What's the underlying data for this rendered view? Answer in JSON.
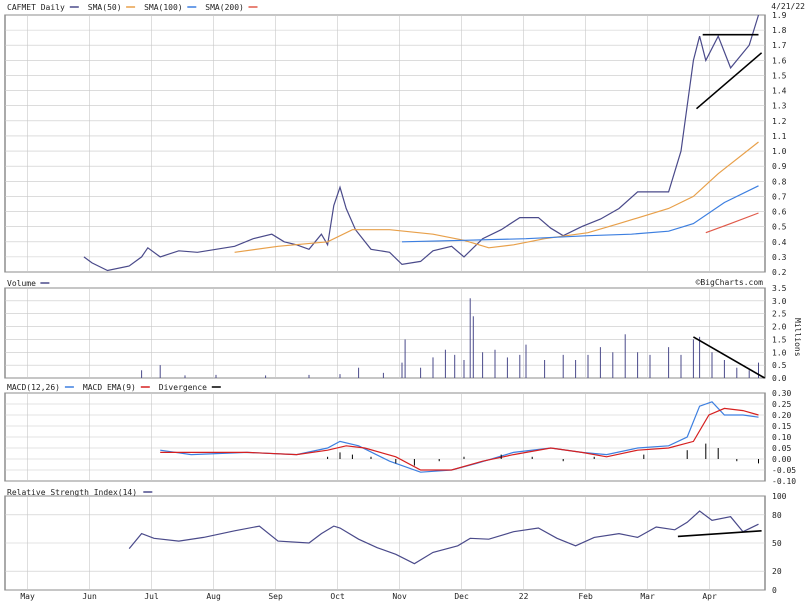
{
  "header": {
    "date": "4/21/22",
    "watermark": "©BigCharts.com"
  },
  "legends": {
    "price": [
      {
        "label": "CAFMET Daily",
        "color": "#4a4a8a"
      },
      {
        "label": "SMA(50)",
        "color": "#e8a04a"
      },
      {
        "label": "SMA(100)",
        "color": "#3d7fe0"
      },
      {
        "label": "SMA(200)",
        "color": "#e05a4a"
      }
    ],
    "volume": [
      {
        "label": "Volume",
        "color": "#4a4a8a"
      }
    ],
    "macd": [
      {
        "label": "MACD(12,26)",
        "color": "#3d7fe0"
      },
      {
        "label": "MACD EMA(9)",
        "color": "#d62020"
      },
      {
        "label": "Divergence",
        "color": "#000000"
      }
    ],
    "rsi": [
      {
        "label": "Relative Strength Index(14)",
        "color": "#4a4a8a"
      }
    ]
  },
  "colors": {
    "price": "#4a4a8a",
    "sma50": "#e8a04a",
    "sma100": "#3d7fe0",
    "sma200": "#e05a4a",
    "macd": "#3d7fe0",
    "signal": "#d62020",
    "divergence": "#000000",
    "volume": "#4a4a8a",
    "rsi": "#4a4a8a"
  },
  "chart_data": [
    {
      "type": "line",
      "panel": "price",
      "xlabels": [
        "May",
        "Jun",
        "Jul",
        "Aug",
        "Sep",
        "Oct",
        "Nov",
        "Dec",
        "22",
        "Feb",
        "Mar",
        "Apr"
      ],
      "yticks": [
        "0.2",
        "0.3",
        "0.4",
        "0.5",
        "0.6",
        "0.7",
        "0.8",
        "0.9",
        "1.0",
        "1.1",
        "1.2",
        "1.3",
        "1.4",
        "1.5",
        "1.6",
        "1.7",
        "1.8",
        "1.9"
      ],
      "ylim": [
        0.2,
        1.9
      ],
      "grid": true,
      "series": [
        {
          "name": "CAFMET Daily",
          "points": [
            [
              0.87,
              0.3
            ],
            [
              1.0,
              0.26
            ],
            [
              1.25,
              0.21
            ],
            [
              1.6,
              0.24
            ],
            [
              1.8,
              0.3
            ],
            [
              1.9,
              0.36
            ],
            [
              2.1,
              0.3
            ],
            [
              2.4,
              0.34
            ],
            [
              2.7,
              0.33
            ],
            [
              3.0,
              0.35
            ],
            [
              3.3,
              0.37
            ],
            [
              3.6,
              0.42
            ],
            [
              3.9,
              0.45
            ],
            [
              4.1,
              0.4
            ],
            [
              4.3,
              0.38
            ],
            [
              4.5,
              0.35
            ],
            [
              4.7,
              0.45
            ],
            [
              4.8,
              0.38
            ],
            [
              4.9,
              0.64
            ],
            [
              5.0,
              0.76
            ],
            [
              5.1,
              0.62
            ],
            [
              5.25,
              0.48
            ],
            [
              5.5,
              0.35
            ],
            [
              5.8,
              0.33
            ],
            [
              6.0,
              0.25
            ],
            [
              6.3,
              0.27
            ],
            [
              6.5,
              0.34
            ],
            [
              6.8,
              0.37
            ],
            [
              7.0,
              0.3
            ],
            [
              7.3,
              0.42
            ],
            [
              7.6,
              0.48
            ],
            [
              7.9,
              0.56
            ],
            [
              8.2,
              0.56
            ],
            [
              8.4,
              0.49
            ],
            [
              8.6,
              0.44
            ],
            [
              8.9,
              0.5
            ],
            [
              9.2,
              0.55
            ],
            [
              9.5,
              0.62
            ],
            [
              9.8,
              0.73
            ],
            [
              10.0,
              0.73
            ],
            [
              10.3,
              0.73
            ],
            [
              10.5,
              1.0
            ],
            [
              10.6,
              1.3
            ],
            [
              10.7,
              1.6
            ],
            [
              10.8,
              1.76
            ],
            [
              10.9,
              1.6
            ],
            [
              11.1,
              1.76
            ],
            [
              11.3,
              1.55
            ],
            [
              11.6,
              1.7
            ],
            [
              11.75,
              1.9
            ]
          ]
        },
        {
          "name": "SMA(50)",
          "points": [
            [
              3.3,
              0.33
            ],
            [
              4.0,
              0.37
            ],
            [
              4.8,
              0.4
            ],
            [
              5.2,
              0.48
            ],
            [
              5.8,
              0.48
            ],
            [
              6.5,
              0.45
            ],
            [
              7.0,
              0.41
            ],
            [
              7.4,
              0.36
            ],
            [
              7.8,
              0.38
            ],
            [
              8.3,
              0.42
            ],
            [
              9.0,
              0.46
            ],
            [
              9.5,
              0.52
            ],
            [
              10.3,
              0.62
            ],
            [
              10.7,
              0.7
            ],
            [
              11.1,
              0.85
            ],
            [
              11.75,
              1.06
            ]
          ]
        },
        {
          "name": "SMA(100)",
          "points": [
            [
              6.0,
              0.4
            ],
            [
              7.0,
              0.41
            ],
            [
              8.0,
              0.42
            ],
            [
              9.0,
              0.44
            ],
            [
              9.7,
              0.45
            ],
            [
              10.3,
              0.47
            ],
            [
              10.7,
              0.52
            ],
            [
              11.2,
              0.66
            ],
            [
              11.75,
              0.77
            ]
          ]
        },
        {
          "name": "SMA(200)",
          "points": [
            [
              10.9,
              0.46
            ],
            [
              11.3,
              0.52
            ],
            [
              11.75,
              0.59
            ]
          ]
        }
      ],
      "annotations": [
        {
          "kind": "trendline",
          "points": [
            [
              10.85,
              1.77
            ],
            [
              11.75,
              1.77
            ]
          ]
        },
        {
          "kind": "trendline",
          "points": [
            [
              10.75,
              1.28
            ],
            [
              11.8,
              1.65
            ]
          ]
        }
      ]
    },
    {
      "type": "bar",
      "panel": "volume",
      "unit": "Millions",
      "yticks": [
        "0.0",
        "0.5",
        "1.0",
        "1.5",
        "2.0",
        "2.5",
        "3.0",
        "3.5"
      ],
      "ylim": [
        0,
        3.5
      ],
      "grid": true,
      "bars": [
        [
          1.8,
          0.3
        ],
        [
          2.1,
          0.5
        ],
        [
          2.5,
          0.1
        ],
        [
          3.0,
          0.12
        ],
        [
          3.8,
          0.1
        ],
        [
          4.5,
          0.12
        ],
        [
          5.0,
          0.15
        ],
        [
          5.3,
          0.4
        ],
        [
          5.7,
          0.2
        ],
        [
          6.0,
          0.6
        ],
        [
          6.05,
          1.5
        ],
        [
          6.3,
          0.4
        ],
        [
          6.5,
          0.8
        ],
        [
          6.7,
          1.1
        ],
        [
          6.85,
          0.9
        ],
        [
          7.0,
          0.7
        ],
        [
          7.1,
          3.1
        ],
        [
          7.15,
          2.4
        ],
        [
          7.3,
          1.0
        ],
        [
          7.5,
          1.1
        ],
        [
          7.7,
          0.8
        ],
        [
          7.9,
          0.9
        ],
        [
          8.0,
          1.3
        ],
        [
          8.3,
          0.7
        ],
        [
          8.6,
          0.9
        ],
        [
          8.8,
          0.7
        ],
        [
          9.0,
          0.9
        ],
        [
          9.2,
          1.2
        ],
        [
          9.4,
          1.0
        ],
        [
          9.6,
          1.7
        ],
        [
          9.8,
          1.0
        ],
        [
          10.0,
          0.9
        ],
        [
          10.3,
          1.2
        ],
        [
          10.5,
          0.9
        ],
        [
          10.7,
          1.5
        ],
        [
          10.8,
          1.6
        ],
        [
          11.0,
          1.0
        ],
        [
          11.2,
          0.7
        ],
        [
          11.4,
          0.4
        ],
        [
          11.6,
          0.3
        ],
        [
          11.75,
          0.6
        ]
      ],
      "annotations": [
        {
          "kind": "trendline",
          "points": [
            [
              10.7,
              1.6
            ],
            [
              11.85,
              0
            ]
          ]
        }
      ]
    },
    {
      "type": "line",
      "panel": "macd",
      "yticks": [
        "-0.10",
        "-0.05",
        "0.00",
        "0.05",
        "0.10",
        "0.15",
        "0.20",
        "0.25",
        "0.30"
      ],
      "ylim": [
        -0.1,
        0.3
      ],
      "grid": true,
      "series": [
        {
          "name": "MACD(12,26)",
          "points": [
            [
              2.1,
              0.04
            ],
            [
              2.6,
              0.02
            ],
            [
              3.5,
              0.03
            ],
            [
              4.3,
              0.02
            ],
            [
              4.8,
              0.05
            ],
            [
              5.0,
              0.08
            ],
            [
              5.3,
              0.06
            ],
            [
              5.8,
              -0.01
            ],
            [
              6.3,
              -0.06
            ],
            [
              6.8,
              -0.05
            ],
            [
              7.2,
              -0.02
            ],
            [
              7.8,
              0.03
            ],
            [
              8.4,
              0.05
            ],
            [
              8.9,
              0.03
            ],
            [
              9.3,
              0.02
            ],
            [
              9.8,
              0.05
            ],
            [
              10.3,
              0.06
            ],
            [
              10.6,
              0.1
            ],
            [
              10.8,
              0.24
            ],
            [
              11.0,
              0.26
            ],
            [
              11.2,
              0.2
            ],
            [
              11.5,
              0.2
            ],
            [
              11.75,
              0.19
            ]
          ]
        },
        {
          "name": "MACD EMA(9)",
          "points": [
            [
              2.1,
              0.03
            ],
            [
              2.8,
              0.03
            ],
            [
              3.5,
              0.03
            ],
            [
              4.3,
              0.02
            ],
            [
              4.8,
              0.04
            ],
            [
              5.1,
              0.06
            ],
            [
              5.4,
              0.05
            ],
            [
              5.9,
              0.01
            ],
            [
              6.3,
              -0.05
            ],
            [
              6.8,
              -0.05
            ],
            [
              7.3,
              -0.01
            ],
            [
              7.8,
              0.02
            ],
            [
              8.4,
              0.05
            ],
            [
              8.9,
              0.03
            ],
            [
              9.3,
              0.01
            ],
            [
              9.8,
              0.04
            ],
            [
              10.3,
              0.05
            ],
            [
              10.7,
              0.08
            ],
            [
              10.95,
              0.2
            ],
            [
              11.2,
              0.23
            ],
            [
              11.5,
              0.22
            ],
            [
              11.75,
              0.2
            ]
          ]
        }
      ],
      "histogram": [
        [
          4.8,
          0.01
        ],
        [
          5.0,
          0.03
        ],
        [
          5.2,
          0.02
        ],
        [
          5.5,
          0.01
        ],
        [
          5.9,
          -0.02
        ],
        [
          6.2,
          -0.03
        ],
        [
          6.6,
          -0.01
        ],
        [
          7.0,
          0.01
        ],
        [
          7.6,
          0.02
        ],
        [
          8.1,
          0.01
        ],
        [
          8.6,
          -0.01
        ],
        [
          9.1,
          0.01
        ],
        [
          9.9,
          0.02
        ],
        [
          10.6,
          0.04
        ],
        [
          10.9,
          0.07
        ],
        [
          11.1,
          0.05
        ],
        [
          11.4,
          -0.01
        ],
        [
          11.75,
          -0.02
        ]
      ]
    },
    {
      "type": "line",
      "panel": "rsi",
      "yticks": [
        "0",
        "20",
        "50",
        "80",
        "100"
      ],
      "ylim": [
        0,
        100
      ],
      "grid": true,
      "series": [
        {
          "name": "Relative Strength Index(14)",
          "points": [
            [
              1.6,
              44
            ],
            [
              1.8,
              60
            ],
            [
              2.0,
              55
            ],
            [
              2.4,
              52
            ],
            [
              2.8,
              56
            ],
            [
              3.3,
              63
            ],
            [
              3.7,
              68
            ],
            [
              4.0,
              52
            ],
            [
              4.5,
              50
            ],
            [
              4.7,
              60
            ],
            [
              4.9,
              68
            ],
            [
              5.0,
              66
            ],
            [
              5.3,
              54
            ],
            [
              5.6,
              45
            ],
            [
              5.9,
              38
            ],
            [
              6.2,
              28
            ],
            [
              6.5,
              40
            ],
            [
              6.9,
              47
            ],
            [
              7.1,
              55
            ],
            [
              7.4,
              54
            ],
            [
              7.8,
              62
            ],
            [
              8.2,
              66
            ],
            [
              8.5,
              55
            ],
            [
              8.8,
              47
            ],
            [
              9.1,
              56
            ],
            [
              9.5,
              60
            ],
            [
              9.8,
              56
            ],
            [
              10.1,
              67
            ],
            [
              10.4,
              64
            ],
            [
              10.6,
              72
            ],
            [
              10.8,
              84
            ],
            [
              11.0,
              74
            ],
            [
              11.3,
              78
            ],
            [
              11.5,
              62
            ],
            [
              11.75,
              70
            ]
          ]
        }
      ],
      "annotations": [
        {
          "kind": "trendline",
          "points": [
            [
              10.45,
              57
            ],
            [
              11.8,
              63
            ]
          ]
        }
      ]
    }
  ]
}
